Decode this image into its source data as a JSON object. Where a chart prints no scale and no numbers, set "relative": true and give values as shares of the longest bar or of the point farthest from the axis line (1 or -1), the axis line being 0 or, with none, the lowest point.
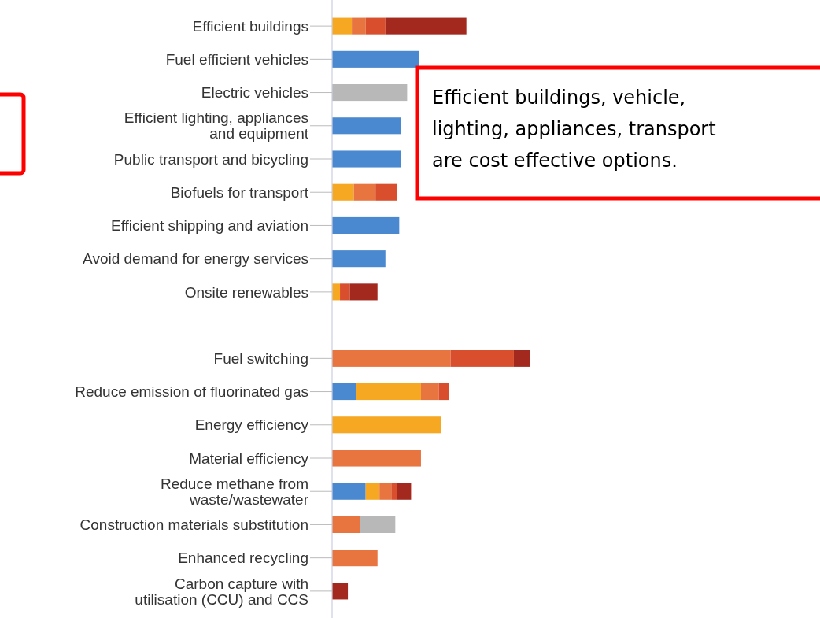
{
  "chart_data": {
    "type": "bar",
    "orientation": "horizontal",
    "stacked": true,
    "relative": true,
    "categories": [
      "Efficient buildings",
      "Fuel efficient vehicles",
      "Electric vehicles",
      "Efficient lighting, appliances and equipment",
      "Public transport and bicycling",
      "Biofuels for transport",
      "Efficient shipping and aviation",
      "Avoid demand for energy services",
      "Onsite renewables",
      null,
      "Fuel switching",
      "Reduce emission of fluorinated gas",
      "Energy efficiency",
      "Material efficiency",
      "Reduce methane from waste/wastewater",
      "Construction materials substitution",
      "Enhanced recycling",
      "Carbon capture with utilisation (CCU) and CCS"
    ],
    "series": [
      {
        "color": "#4a89d0",
        "values": [
          null,
          0.44,
          null,
          0.35,
          0.35,
          null,
          0.34,
          0.27,
          null,
          null,
          null,
          0.12,
          null,
          null,
          0.17,
          null,
          null,
          null
        ]
      },
      {
        "color": "#f7a823",
        "values": [
          0.1,
          null,
          null,
          null,
          null,
          0.11,
          null,
          null,
          0.04,
          null,
          null,
          0.33,
          0.55,
          null,
          0.07,
          null,
          null,
          null
        ]
      },
      {
        "color": "#e8743f",
        "values": [
          0.07,
          null,
          null,
          null,
          null,
          0.11,
          null,
          null,
          null,
          null,
          0.6,
          0.09,
          null,
          0.45,
          0.06,
          0.14,
          0.23,
          null
        ]
      },
      {
        "color": "#d94e2c",
        "values": [
          0.1,
          null,
          null,
          null,
          null,
          0.11,
          null,
          null,
          0.05,
          null,
          0.32,
          0.05,
          null,
          null,
          0.03,
          null,
          null,
          null
        ]
      },
      {
        "color": "#a3291f",
        "values": [
          0.41,
          null,
          null,
          null,
          null,
          null,
          null,
          null,
          0.14,
          null,
          0.08,
          null,
          null,
          null,
          0.07,
          null,
          null,
          0.08
        ]
      },
      {
        "color": "#b8b8b8",
        "values": [
          null,
          null,
          0.38,
          null,
          null,
          null,
          null,
          null,
          null,
          null,
          null,
          null,
          null,
          null,
          null,
          0.18,
          null,
          null
        ]
      }
    ],
    "annotations": [
      "Efficient buildings, vehicle, lighting, appliances, transport are cost effective options."
    ]
  }
}
